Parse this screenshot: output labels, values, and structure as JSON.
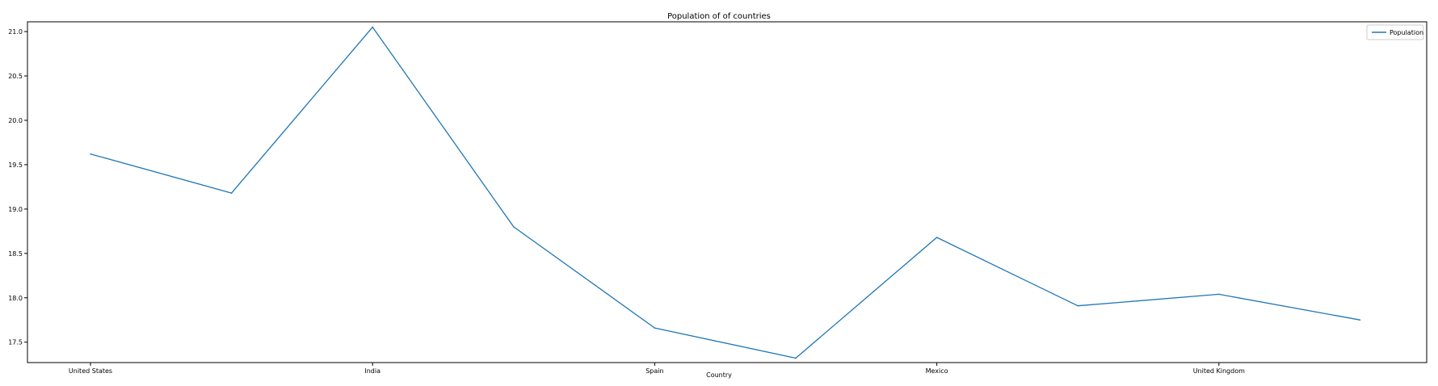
{
  "chart_data": {
    "type": "line",
    "title": "Population of of countries",
    "xlabel": "Country",
    "ylabel": "",
    "categories": [
      "United States",
      "",
      "India",
      "",
      "Spain",
      "",
      "Mexico",
      "",
      "United Kingdom",
      ""
    ],
    "x_tick_labels": [
      "United States",
      "India",
      "Spain",
      "Mexico",
      "United Kingdom"
    ],
    "series": [
      {
        "name": "Population",
        "values": [
          19.62,
          19.18,
          21.05,
          18.8,
          17.66,
          17.32,
          18.68,
          17.91,
          18.04,
          17.75
        ]
      }
    ],
    "y_ticks": [
      "17.5",
      "18.0",
      "18.5",
      "19.0",
      "19.5",
      "20.0",
      "20.5",
      "21.0"
    ],
    "ylim": [
      17.27,
      21.11
    ],
    "grid": false,
    "legend_position": "top-right",
    "line_color": "#1f77b4"
  }
}
